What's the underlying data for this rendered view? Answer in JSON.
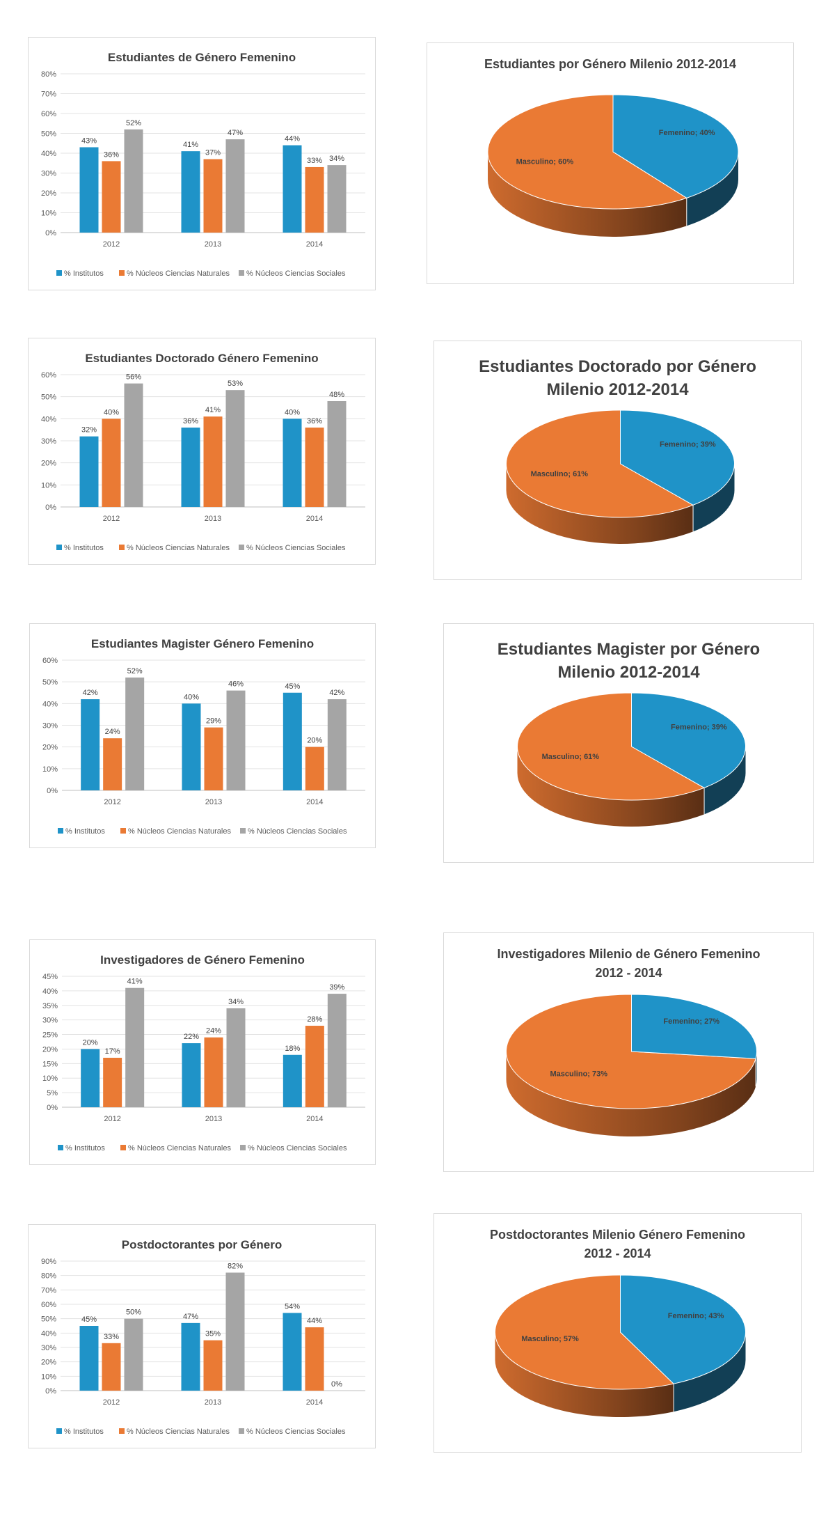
{
  "colors": {
    "institutos": "#1f93c8",
    "naturales": "#ea7a34",
    "sociales": "#a5a5a5",
    "femenino": "#1f93c8",
    "masculino": "#ea7a34"
  },
  "legend": [
    "% Institutos",
    "% Núcleos Ciencias Naturales",
    "% Núcleos Ciencias Sociales"
  ],
  "chart_data": [
    {
      "type": "bar",
      "title": "Estudiantes de Género Femenino",
      "categories": [
        "2012",
        "2013",
        "2014"
      ],
      "ylim": [
        0,
        80
      ],
      "yticks": [
        "0%",
        "10%",
        "20%",
        "30%",
        "40%",
        "50%",
        "60%",
        "70%",
        "80%"
      ],
      "series": [
        {
          "name": "% Institutos",
          "values": [
            43,
            41,
            44
          ],
          "labels": [
            "43%",
            "41%",
            "44%"
          ]
        },
        {
          "name": "% Núcleos Ciencias Naturales",
          "values": [
            36,
            37,
            33
          ],
          "labels": [
            "36%",
            "37%",
            "33%"
          ]
        },
        {
          "name": "% Núcleos Ciencias Sociales",
          "values": [
            52,
            47,
            34
          ],
          "labels": [
            "52%",
            "47%",
            "34%"
          ]
        }
      ],
      "grid": true,
      "legend_position": "bottom"
    },
    {
      "type": "pie",
      "title": [
        "Estudiantes por Género Milenio  2012-2014"
      ],
      "slices": [
        {
          "name": "Femenino",
          "value": 40,
          "label": "Femenino; 40%"
        },
        {
          "name": "Masculino",
          "value": 60,
          "label": "Masculino; 60%"
        }
      ]
    },
    {
      "type": "bar",
      "title": "Estudiantes Doctorado Género Femenino",
      "categories": [
        "2012",
        "2013",
        "2014"
      ],
      "ylim": [
        0,
        60
      ],
      "yticks": [
        "0%",
        "10%",
        "20%",
        "30%",
        "40%",
        "50%",
        "60%"
      ],
      "series": [
        {
          "name": "% Institutos",
          "values": [
            32,
            36,
            40
          ],
          "labels": [
            "32%",
            "36%",
            "40%"
          ]
        },
        {
          "name": "% Núcleos Ciencias Naturales",
          "values": [
            40,
            41,
            36
          ],
          "labels": [
            "40%",
            "41%",
            "36%"
          ]
        },
        {
          "name": "% Núcleos Ciencias Sociales",
          "values": [
            56,
            53,
            48
          ],
          "labels": [
            "56%",
            "53%",
            "48%"
          ]
        }
      ],
      "grid": true,
      "legend_position": "bottom"
    },
    {
      "type": "pie",
      "title": [
        "Estudiantes Doctorado por Género",
        "Milenio  2012-2014"
      ],
      "slices": [
        {
          "name": "Femenino",
          "value": 39,
          "label": "Femenino; 39%"
        },
        {
          "name": "Masculino",
          "value": 61,
          "label": "Masculino; 61%"
        }
      ]
    },
    {
      "type": "bar",
      "title": "Estudiantes Magister Género Femenino",
      "categories": [
        "2012",
        "2013",
        "2014"
      ],
      "ylim": [
        0,
        60
      ],
      "yticks": [
        "0%",
        "10%",
        "20%",
        "30%",
        "40%",
        "50%",
        "60%"
      ],
      "series": [
        {
          "name": "% Institutos",
          "values": [
            42,
            40,
            45
          ],
          "labels": [
            "42%",
            "40%",
            "45%"
          ]
        },
        {
          "name": "% Núcleos Ciencias Naturales",
          "values": [
            24,
            29,
            20
          ],
          "labels": [
            "24%",
            "29%",
            "20%"
          ]
        },
        {
          "name": "% Núcleos Ciencias Sociales",
          "values": [
            52,
            46,
            42
          ],
          "labels": [
            "52%",
            "46%",
            "42%"
          ]
        }
      ],
      "grid": true,
      "legend_position": "bottom"
    },
    {
      "type": "pie",
      "title": [
        "Estudiantes Magister por Género",
        "Milenio  2012-2014"
      ],
      "slices": [
        {
          "name": "Femenino",
          "value": 39,
          "label": "Femenino; 39%"
        },
        {
          "name": "Masculino",
          "value": 61,
          "label": "Masculino; 61%"
        }
      ]
    },
    {
      "type": "bar",
      "title": "Investigadores de Género Femenino",
      "categories": [
        "2012",
        "2013",
        "2014"
      ],
      "ylim": [
        0,
        45
      ],
      "yticks": [
        "0%",
        "5%",
        "10%",
        "15%",
        "20%",
        "25%",
        "30%",
        "35%",
        "40%",
        "45%"
      ],
      "series": [
        {
          "name": "% Institutos",
          "values": [
            20,
            22,
            18
          ],
          "labels": [
            "20%",
            "22%",
            "18%"
          ]
        },
        {
          "name": "% Núcleos Ciencias Naturales",
          "values": [
            17,
            24,
            28
          ],
          "labels": [
            "17%",
            "24%",
            "28%"
          ]
        },
        {
          "name": "% Núcleos Ciencias Sociales",
          "values": [
            41,
            34,
            39
          ],
          "labels": [
            "41%",
            "34%",
            "39%"
          ]
        }
      ],
      "grid": true,
      "legend_position": "bottom"
    },
    {
      "type": "pie",
      "title": [
        "Investigadores Milenio de Género Femenino",
        "2012 - 2014"
      ],
      "slices": [
        {
          "name": "Femenino",
          "value": 27,
          "label": "Femenino; 27%"
        },
        {
          "name": "Masculino",
          "value": 73,
          "label": "Masculino; 73%"
        }
      ]
    },
    {
      "type": "bar",
      "title": "Postdoctorantes por Género",
      "categories": [
        "2012",
        "2013",
        "2014"
      ],
      "ylim": [
        0,
        90
      ],
      "yticks": [
        "0%",
        "10%",
        "20%",
        "30%",
        "40%",
        "50%",
        "60%",
        "70%",
        "80%",
        "90%"
      ],
      "series": [
        {
          "name": "% Institutos",
          "values": [
            45,
            47,
            54
          ],
          "labels": [
            "45%",
            "47%",
            "54%"
          ]
        },
        {
          "name": "% Núcleos Ciencias Naturales",
          "values": [
            33,
            35,
            44
          ],
          "labels": [
            "33%",
            "35%",
            "44%"
          ]
        },
        {
          "name": "% Núcleos Ciencias Sociales",
          "values": [
            50,
            82,
            0
          ],
          "labels": [
            "50%",
            "82%",
            "0%"
          ]
        }
      ],
      "grid": true,
      "legend_position": "bottom"
    },
    {
      "type": "pie",
      "title": [
        "Postdoctorantes Milenio Género Femenino",
        "2012 - 2014"
      ],
      "slices": [
        {
          "name": "Femenino",
          "value": 43,
          "label": "Femenino; 43%"
        },
        {
          "name": "Masculino",
          "value": 57,
          "label": "Masculino; 57%"
        }
      ]
    }
  ]
}
